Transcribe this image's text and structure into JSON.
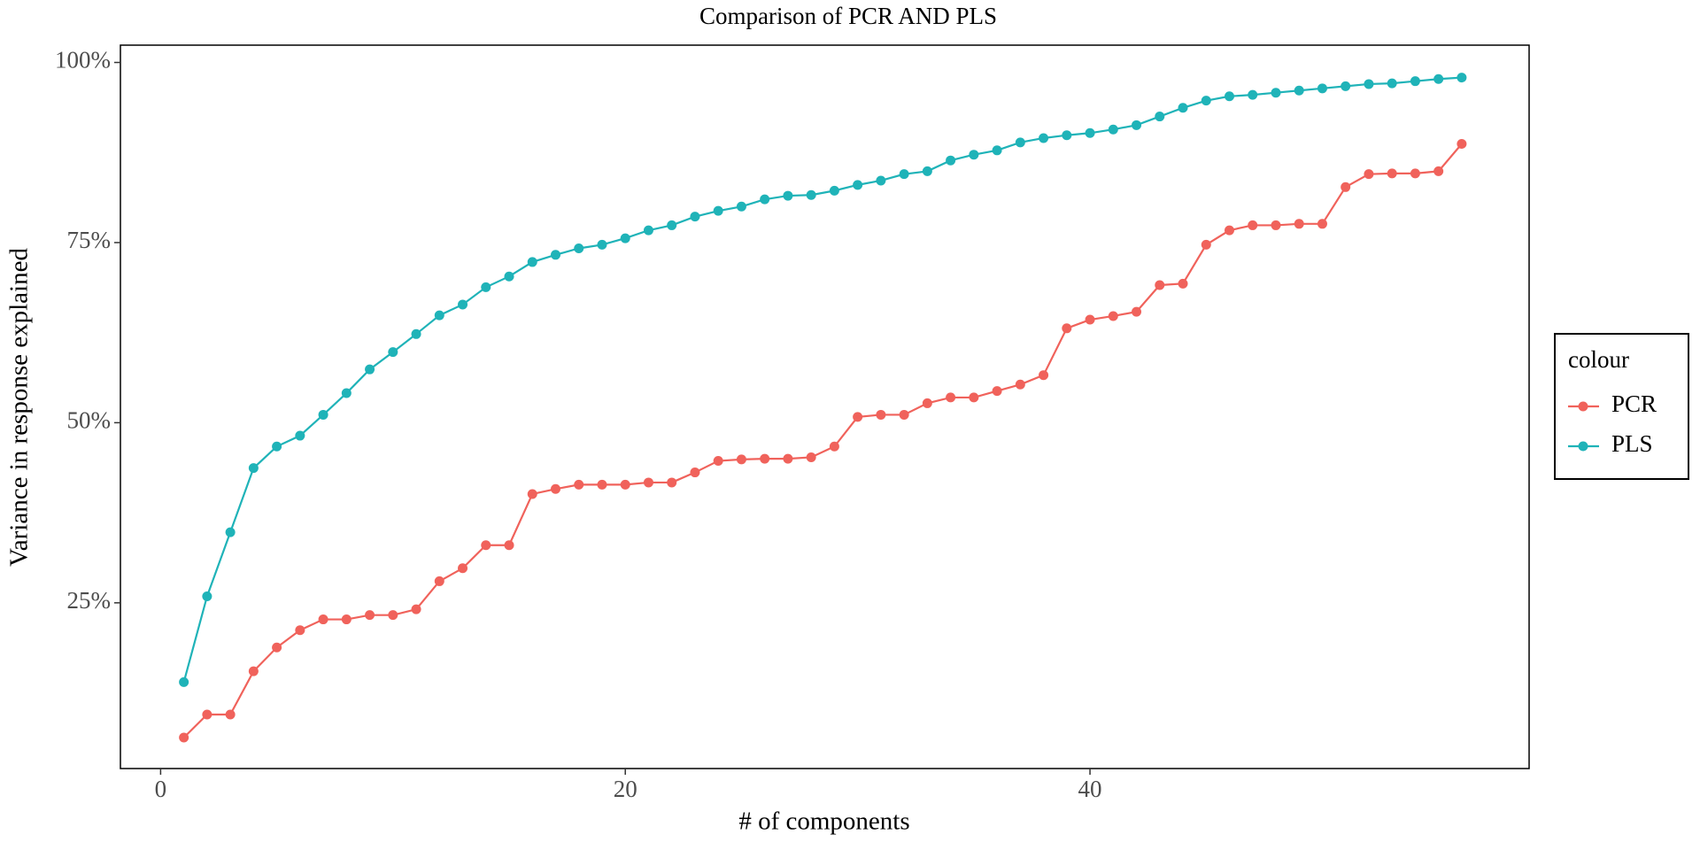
{
  "chart_data": {
    "type": "line",
    "title": "Comparison of PCR AND PLS",
    "xlabel": "# of components",
    "ylabel": "Variance in response explained",
    "legend_title": "colour",
    "legend": "right",
    "x": [
      1,
      2,
      3,
      4,
      5,
      6,
      7,
      8,
      9,
      10,
      11,
      12,
      13,
      14,
      15,
      16,
      17,
      18,
      19,
      20,
      21,
      22,
      23,
      24,
      25,
      26,
      27,
      28,
      29,
      30,
      31,
      32,
      33,
      34,
      35,
      36,
      37,
      38,
      39,
      40,
      41,
      42,
      43,
      44,
      45,
      46,
      47,
      48,
      49,
      50,
      51,
      52,
      53,
      54,
      55,
      56
    ],
    "series": [
      {
        "name": "PCR",
        "color": "#f0625b",
        "values": [
          6.3,
          9.5,
          9.5,
          15.5,
          18.8,
          21.2,
          22.7,
          22.7,
          23.3,
          23.3,
          24.1,
          28.0,
          29.8,
          33.0,
          33.0,
          40.1,
          40.8,
          41.4,
          41.4,
          41.4,
          41.7,
          41.7,
          43.1,
          44.7,
          44.9,
          45.0,
          45.0,
          45.2,
          46.7,
          50.8,
          51.1,
          51.1,
          52.7,
          53.5,
          53.5,
          54.4,
          55.3,
          56.6,
          63.1,
          64.3,
          64.8,
          65.4,
          69.1,
          69.3,
          74.7,
          76.7,
          77.4,
          77.4,
          77.6,
          77.6,
          82.7,
          84.5,
          84.6,
          84.6,
          84.9,
          88.7
        ]
      },
      {
        "name": "PLS",
        "color": "#1fb3b8",
        "values": [
          14.0,
          25.9,
          34.8,
          43.7,
          46.7,
          48.2,
          51.1,
          54.1,
          57.4,
          59.8,
          62.3,
          64.9,
          66.4,
          68.8,
          70.3,
          72.3,
          73.3,
          74.2,
          74.7,
          75.6,
          76.7,
          77.4,
          78.6,
          79.4,
          80.0,
          81.0,
          81.5,
          81.6,
          82.2,
          83.0,
          83.6,
          84.5,
          84.9,
          86.4,
          87.2,
          87.8,
          88.9,
          89.5,
          89.9,
          90.2,
          90.7,
          91.3,
          92.5,
          93.7,
          94.7,
          95.3,
          95.5,
          95.8,
          96.1,
          96.4,
          96.7,
          97.0,
          97.1,
          97.4,
          97.7,
          97.9
        ]
      }
    ],
    "xlim": [
      -1.73,
      58.9
    ],
    "xticks": [
      0,
      20,
      40
    ],
    "ylim": [
      2.0,
      102.4
    ],
    "yticks": [
      {
        "value": 25,
        "label": "25%"
      },
      {
        "value": 50,
        "label": "50%"
      },
      {
        "value": 75,
        "label": "75%"
      },
      {
        "value": 100,
        "label": "100%"
      }
    ]
  }
}
